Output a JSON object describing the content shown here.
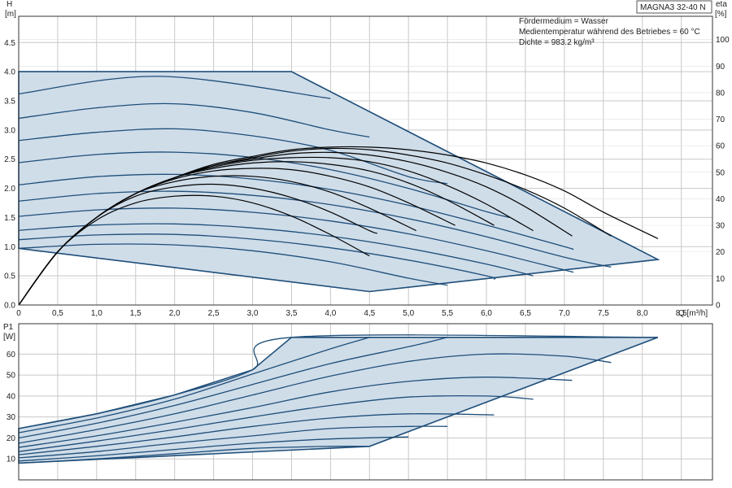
{
  "chart_data": [
    {
      "type": "line",
      "title": "MAGNA3 32-40 N",
      "xlabel": "Q [m³/h]",
      "ylabel_name": "H",
      "ylabel_unit": "[m]",
      "y2label_name": "eta",
      "y2label_unit": "[%]",
      "xlim": [
        0,
        8.9
      ],
      "ylim": [
        0,
        4.95
      ],
      "y2lim": [
        0,
        108.8
      ],
      "grid": true,
      "x_ticks": [
        "0",
        "0,5",
        "1,0",
        "1,5",
        "2,0",
        "2,5",
        "3,0",
        "3,5",
        "4,0",
        "4,5",
        "5,0",
        "5,5",
        "6,0",
        "6,5",
        "7,0",
        "7,5",
        "8,0",
        "8,5"
      ],
      "x_tick_values": [
        0,
        0.5,
        1,
        1.5,
        2,
        2.5,
        3,
        3.5,
        4,
        4.5,
        5,
        5.5,
        6,
        6.5,
        7,
        7.5,
        8,
        8.5
      ],
      "y_ticks": [
        "0.0",
        "0.5",
        "1.0",
        "1.5",
        "2.0",
        "2.5",
        "3.0",
        "3.5",
        "4.0",
        "4.5"
      ],
      "y_tick_values": [
        0,
        0.5,
        1,
        1.5,
        2,
        2.5,
        3,
        3.5,
        4,
        4.5
      ],
      "y2_ticks": [
        "0",
        "10",
        "20",
        "30",
        "40",
        "50",
        "60",
        "70",
        "80",
        "90",
        "100"
      ],
      "y2_tick_values": [
        0,
        10,
        20,
        30,
        40,
        50,
        60,
        70,
        80,
        90,
        100
      ],
      "annotations": [
        "Fördermedium = Wasser",
        "Medientemperatur während des Betriebes = 60 °C",
        "Dichte = 983.2 kg/m³"
      ],
      "colors": {
        "curve": "#1f4e79",
        "area": "#cfdde9",
        "eta": "#000000",
        "grid": "#c8c8c8"
      },
      "operating_area": [
        [
          0,
          4.0
        ],
        [
          3.5,
          4.0
        ],
        [
          8.2,
          0.78
        ],
        [
          4.5,
          0.23
        ],
        [
          0,
          0.97
        ]
      ],
      "head_curves": [
        [
          [
            0,
            3.62
          ],
          [
            1.8,
            3.92
          ],
          [
            4.0,
            3.54
          ]
        ],
        [
          [
            0,
            3.2
          ],
          [
            1.0,
            3.38
          ],
          [
            2.0,
            3.45
          ],
          [
            3.0,
            3.3
          ],
          [
            4.0,
            3.0
          ],
          [
            4.5,
            2.88
          ]
        ],
        [
          [
            0,
            2.82
          ],
          [
            1.0,
            2.96
          ],
          [
            2.0,
            3.02
          ],
          [
            3.0,
            2.9
          ],
          [
            4.0,
            2.65
          ],
          [
            5.0,
            2.2
          ],
          [
            5.5,
            2.08
          ]
        ],
        [
          [
            0,
            2.44
          ],
          [
            1.0,
            2.58
          ],
          [
            2.0,
            2.62
          ],
          [
            3.0,
            2.53
          ],
          [
            4.0,
            2.32
          ],
          [
            5.0,
            2.0
          ],
          [
            6.0,
            1.6
          ],
          [
            6.3,
            1.5
          ]
        ],
        [
          [
            0,
            2.06
          ],
          [
            1.0,
            2.2
          ],
          [
            2.0,
            2.24
          ],
          [
            3.0,
            2.16
          ],
          [
            4.0,
            1.98
          ],
          [
            5.0,
            1.71
          ],
          [
            6.0,
            1.37
          ],
          [
            7.0,
            1.0
          ],
          [
            7.1,
            0.96
          ]
        ],
        [
          [
            0,
            1.78
          ],
          [
            1.0,
            1.91
          ],
          [
            2.0,
            1.95
          ],
          [
            3.0,
            1.88
          ],
          [
            4.0,
            1.72
          ],
          [
            5.0,
            1.48
          ],
          [
            6.0,
            1.17
          ],
          [
            7.0,
            0.82
          ],
          [
            7.6,
            0.65
          ]
        ],
        [
          [
            0,
            1.52
          ],
          [
            1.0,
            1.63
          ],
          [
            2.0,
            1.66
          ],
          [
            3.0,
            1.59
          ],
          [
            4.0,
            1.44
          ],
          [
            5.0,
            1.22
          ],
          [
            6.0,
            0.93
          ],
          [
            7.0,
            0.6
          ],
          [
            7.1,
            0.57
          ]
        ],
        [
          [
            0,
            1.28
          ],
          [
            1.0,
            1.37
          ],
          [
            2.0,
            1.39
          ],
          [
            3.0,
            1.32
          ],
          [
            4.0,
            1.18
          ],
          [
            5.0,
            0.97
          ],
          [
            6.0,
            0.7
          ],
          [
            6.6,
            0.5
          ]
        ],
        [
          [
            0,
            1.12
          ],
          [
            1.0,
            1.2
          ],
          [
            2.0,
            1.21
          ],
          [
            3.0,
            1.13
          ],
          [
            4.0,
            0.98
          ],
          [
            5.0,
            0.77
          ],
          [
            6.0,
            0.5
          ],
          [
            6.1,
            0.44
          ]
        ],
        [
          [
            0,
            0.97
          ],
          [
            1.0,
            1.04
          ],
          [
            2.0,
            1.03
          ],
          [
            3.0,
            0.93
          ],
          [
            4.0,
            0.74
          ],
          [
            5.0,
            0.46
          ],
          [
            5.5,
            0.34
          ]
        ]
      ],
      "eta_curves": [
        [
          [
            0,
            0
          ],
          [
            0.5,
            20
          ],
          [
            1.0,
            33
          ],
          [
            1.5,
            42
          ],
          [
            2.0,
            48
          ],
          [
            2.5,
            53
          ],
          [
            3.0,
            56
          ],
          [
            3.5,
            58.5
          ],
          [
            4.0,
            59.5
          ],
          [
            4.5,
            59.5
          ],
          [
            5.0,
            58.5
          ],
          [
            5.5,
            56.5
          ],
          [
            6.0,
            53.5
          ],
          [
            6.5,
            49
          ],
          [
            7.0,
            43
          ],
          [
            7.5,
            35
          ],
          [
            8.2,
            25
          ]
        ],
        [
          [
            0,
            0
          ],
          [
            0.5,
            20
          ],
          [
            1.0,
            33
          ],
          [
            1.5,
            42
          ],
          [
            2.0,
            48
          ],
          [
            2.5,
            52.5
          ],
          [
            3.0,
            55.5
          ],
          [
            3.5,
            58
          ],
          [
            4.0,
            59
          ],
          [
            4.5,
            58.5
          ],
          [
            5.0,
            56.5
          ],
          [
            5.5,
            53.5
          ],
          [
            6.0,
            49
          ],
          [
            6.5,
            43.5
          ],
          [
            7.0,
            36.5
          ],
          [
            7.6,
            26
          ]
        ],
        [
          [
            0,
            0
          ],
          [
            0.5,
            20
          ],
          [
            1.0,
            33
          ],
          [
            1.5,
            42
          ],
          [
            2.0,
            48
          ],
          [
            2.5,
            52.5
          ],
          [
            3.0,
            55
          ],
          [
            3.5,
            57
          ],
          [
            4.0,
            57.5
          ],
          [
            4.5,
            56.5
          ],
          [
            5.0,
            54
          ],
          [
            5.5,
            50
          ],
          [
            6.0,
            44.5
          ],
          [
            6.5,
            37
          ],
          [
            7.1,
            26
          ]
        ],
        [
          [
            0,
            0
          ],
          [
            0.5,
            20
          ],
          [
            1.0,
            33
          ],
          [
            1.5,
            42
          ],
          [
            2.0,
            48
          ],
          [
            2.5,
            52
          ],
          [
            3.0,
            54.5
          ],
          [
            3.5,
            55.5
          ],
          [
            4.0,
            55.5
          ],
          [
            4.5,
            54
          ],
          [
            5.0,
            50.5
          ],
          [
            5.5,
            45
          ],
          [
            6.0,
            38
          ],
          [
            6.6,
            28
          ]
        ],
        [
          [
            0,
            0
          ],
          [
            0.5,
            20
          ],
          [
            1.0,
            33
          ],
          [
            1.5,
            42
          ],
          [
            2.0,
            48
          ],
          [
            2.5,
            51.5
          ],
          [
            3.0,
            53.5
          ],
          [
            3.5,
            54
          ],
          [
            4.0,
            53
          ],
          [
            4.5,
            50.5
          ],
          [
            5.0,
            46
          ],
          [
            5.5,
            39.5
          ],
          [
            6.1,
            30
          ]
        ],
        [
          [
            0,
            0
          ],
          [
            0.5,
            20
          ],
          [
            1.0,
            33
          ],
          [
            1.5,
            42
          ],
          [
            2.0,
            47.5
          ],
          [
            2.5,
            50.5
          ],
          [
            3.0,
            51.5
          ],
          [
            3.5,
            51
          ],
          [
            4.0,
            48.5
          ],
          [
            4.5,
            44.5
          ],
          [
            5.0,
            38.5
          ],
          [
            5.6,
            30
          ]
        ],
        [
          [
            0,
            0
          ],
          [
            0.5,
            20
          ],
          [
            1.0,
            33
          ],
          [
            1.5,
            42
          ],
          [
            2.0,
            46.5
          ],
          [
            2.5,
            48.5
          ],
          [
            3.0,
            48.5
          ],
          [
            3.5,
            46.5
          ],
          [
            4.0,
            42.5
          ],
          [
            4.5,
            36.5
          ],
          [
            5.1,
            28
          ]
        ],
        [
          [
            0,
            0
          ],
          [
            0.5,
            20
          ],
          [
            1.0,
            33
          ],
          [
            1.5,
            41
          ],
          [
            2.0,
            44.5
          ],
          [
            2.5,
            45.5
          ],
          [
            3.0,
            44
          ],
          [
            3.5,
            40.5
          ],
          [
            4.0,
            35
          ],
          [
            4.5,
            28
          ],
          [
            4.6,
            27
          ]
        ],
        [
          [
            0,
            0
          ],
          [
            0.5,
            20
          ],
          [
            1.0,
            32
          ],
          [
            1.5,
            38.5
          ],
          [
            2.0,
            41
          ],
          [
            2.5,
            41
          ],
          [
            3.0,
            38.5
          ],
          [
            3.5,
            33.5
          ],
          [
            4.0,
            26.5
          ],
          [
            4.5,
            18.5
          ]
        ]
      ]
    },
    {
      "type": "line",
      "ylabel_name": "P1",
      "ylabel_unit": "[W]",
      "xlim": [
        0,
        8.9
      ],
      "ylim": [
        0,
        74.5
      ],
      "grid": true,
      "y_ticks": [
        "10",
        "20",
        "30",
        "40",
        "50",
        "60"
      ],
      "y_tick_values": [
        10,
        20,
        30,
        40,
        50,
        60
      ],
      "operating_area": [
        [
          0,
          24.5
        ],
        [
          1.0,
          31.5
        ],
        [
          2.0,
          40.5
        ],
        [
          3.0,
          52.5
        ],
        [
          3.5,
          68.0
        ],
        [
          8.2,
          68.0
        ],
        [
          4.5,
          16.0
        ],
        [
          0,
          8.0
        ]
      ],
      "power_curves": [
        [
          [
            0,
            24.5
          ],
          [
            1.0,
            31.5
          ],
          [
            2.0,
            40.5
          ],
          [
            3.0,
            52.5
          ],
          [
            3.5,
            68.0
          ],
          [
            8.2,
            68.0
          ]
        ],
        [
          [
            0,
            22.5
          ],
          [
            1.0,
            29.5
          ],
          [
            2.0,
            38.5
          ],
          [
            3.0,
            50.5
          ],
          [
            4.0,
            62.5
          ],
          [
            4.5,
            68.0
          ]
        ],
        [
          [
            0,
            20.0
          ],
          [
            1.0,
            27.0
          ],
          [
            2.0,
            35.5
          ],
          [
            3.0,
            45.5
          ],
          [
            4.0,
            55.5
          ],
          [
            5.0,
            63.5
          ],
          [
            5.5,
            68.0
          ]
        ],
        [
          [
            0,
            17.5
          ],
          [
            1.0,
            24.0
          ],
          [
            2.0,
            31.5
          ],
          [
            3.0,
            40.5
          ],
          [
            4.0,
            49.5
          ],
          [
            5.0,
            56.5
          ],
          [
            6.0,
            60.0
          ],
          [
            7.0,
            59.0
          ],
          [
            7.6,
            56.0
          ]
        ],
        [
          [
            0,
            15.5
          ],
          [
            1.0,
            21.0
          ],
          [
            2.0,
            27.5
          ],
          [
            3.0,
            34.5
          ],
          [
            4.0,
            42.0
          ],
          [
            5.0,
            47.0
          ],
          [
            6.0,
            49.0
          ],
          [
            7.1,
            47.5
          ]
        ],
        [
          [
            0,
            13.5
          ],
          [
            1.0,
            18.5
          ],
          [
            2.0,
            24.0
          ],
          [
            3.0,
            30.0
          ],
          [
            4.0,
            35.5
          ],
          [
            5.0,
            39.5
          ],
          [
            6.0,
            40.0
          ],
          [
            6.6,
            38.5
          ]
        ],
        [
          [
            0,
            12.0
          ],
          [
            1.0,
            16.0
          ],
          [
            2.0,
            20.5
          ],
          [
            3.0,
            25.5
          ],
          [
            4.0,
            29.5
          ],
          [
            5.0,
            31.5
          ],
          [
            6.1,
            31.0
          ]
        ],
        [
          [
            0,
            10.5
          ],
          [
            1.0,
            13.5
          ],
          [
            2.0,
            17.5
          ],
          [
            3.0,
            21.0
          ],
          [
            4.0,
            24.5
          ],
          [
            5.0,
            25.5
          ],
          [
            5.5,
            25.5
          ]
        ],
        [
          [
            0,
            9.0
          ],
          [
            1.0,
            11.5
          ],
          [
            2.0,
            14.5
          ],
          [
            3.0,
            17.5
          ],
          [
            4.0,
            19.5
          ],
          [
            5.0,
            20.5
          ]
        ],
        [
          [
            0,
            8.0
          ],
          [
            1.0,
            10.0
          ],
          [
            2.0,
            12.5
          ],
          [
            3.0,
            15.0
          ],
          [
            4.0,
            16.0
          ],
          [
            4.5,
            16.0
          ]
        ]
      ]
    }
  ]
}
